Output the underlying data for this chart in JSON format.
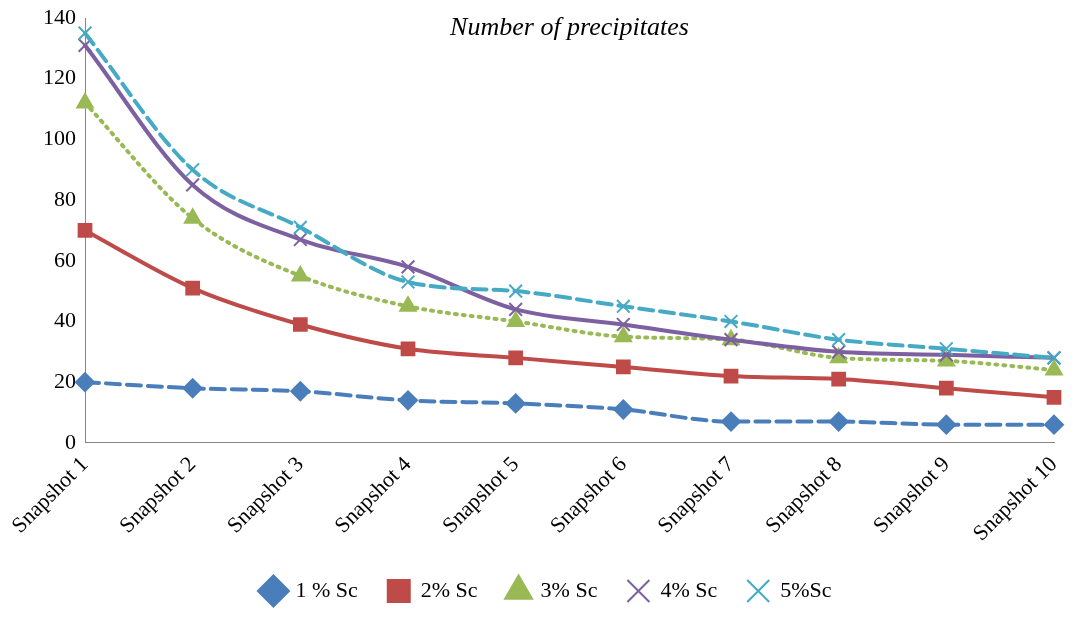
{
  "chart_data": {
    "type": "line",
    "title": "Number of precipitates",
    "categories": [
      "Snapshot 1",
      "Snapshot 2",
      "Snapshot 3",
      "Snapshot 4",
      "Snapshot 5",
      "Snapshot 6",
      "Snapshot 7",
      "Snapshot 8",
      "Snapshot 9",
      "Snapshot 10"
    ],
    "series": [
      {
        "name": "1 % Sc",
        "color": "#4a7ebb",
        "marker": "diamond",
        "line_style": "dashed",
        "values": [
          20,
          18,
          17,
          14,
          13,
          11,
          7,
          7,
          6,
          6
        ]
      },
      {
        "name": "2% Sc",
        "color": "#be4b48",
        "marker": "square",
        "line_style": "solid",
        "values": [
          70,
          51,
          39,
          31,
          28,
          25,
          22,
          21,
          18,
          15
        ]
      },
      {
        "name": "3% Sc",
        "color": "#98b954",
        "marker": "triangle",
        "line_style": "dotted",
        "values": [
          112,
          74,
          55,
          45,
          40,
          35,
          34,
          28,
          27,
          24
        ]
      },
      {
        "name": "4% Sc",
        "color": "#7d60a0",
        "marker": "cross",
        "line_style": "solid",
        "values": [
          131,
          85,
          67,
          58,
          44,
          39,
          34,
          30,
          29,
          28
        ]
      },
      {
        "name": "5%Sc",
        "color": "#46aac5",
        "marker": "cross",
        "line_style": "dashed",
        "values": [
          135,
          90,
          71,
          53,
          50,
          45,
          40,
          34,
          31,
          28
        ]
      }
    ],
    "ylim": [
      0,
      140
    ],
    "yticks": [
      0,
      20,
      40,
      60,
      80,
      100,
      120,
      140
    ],
    "grid": false,
    "legend": "bottom"
  }
}
